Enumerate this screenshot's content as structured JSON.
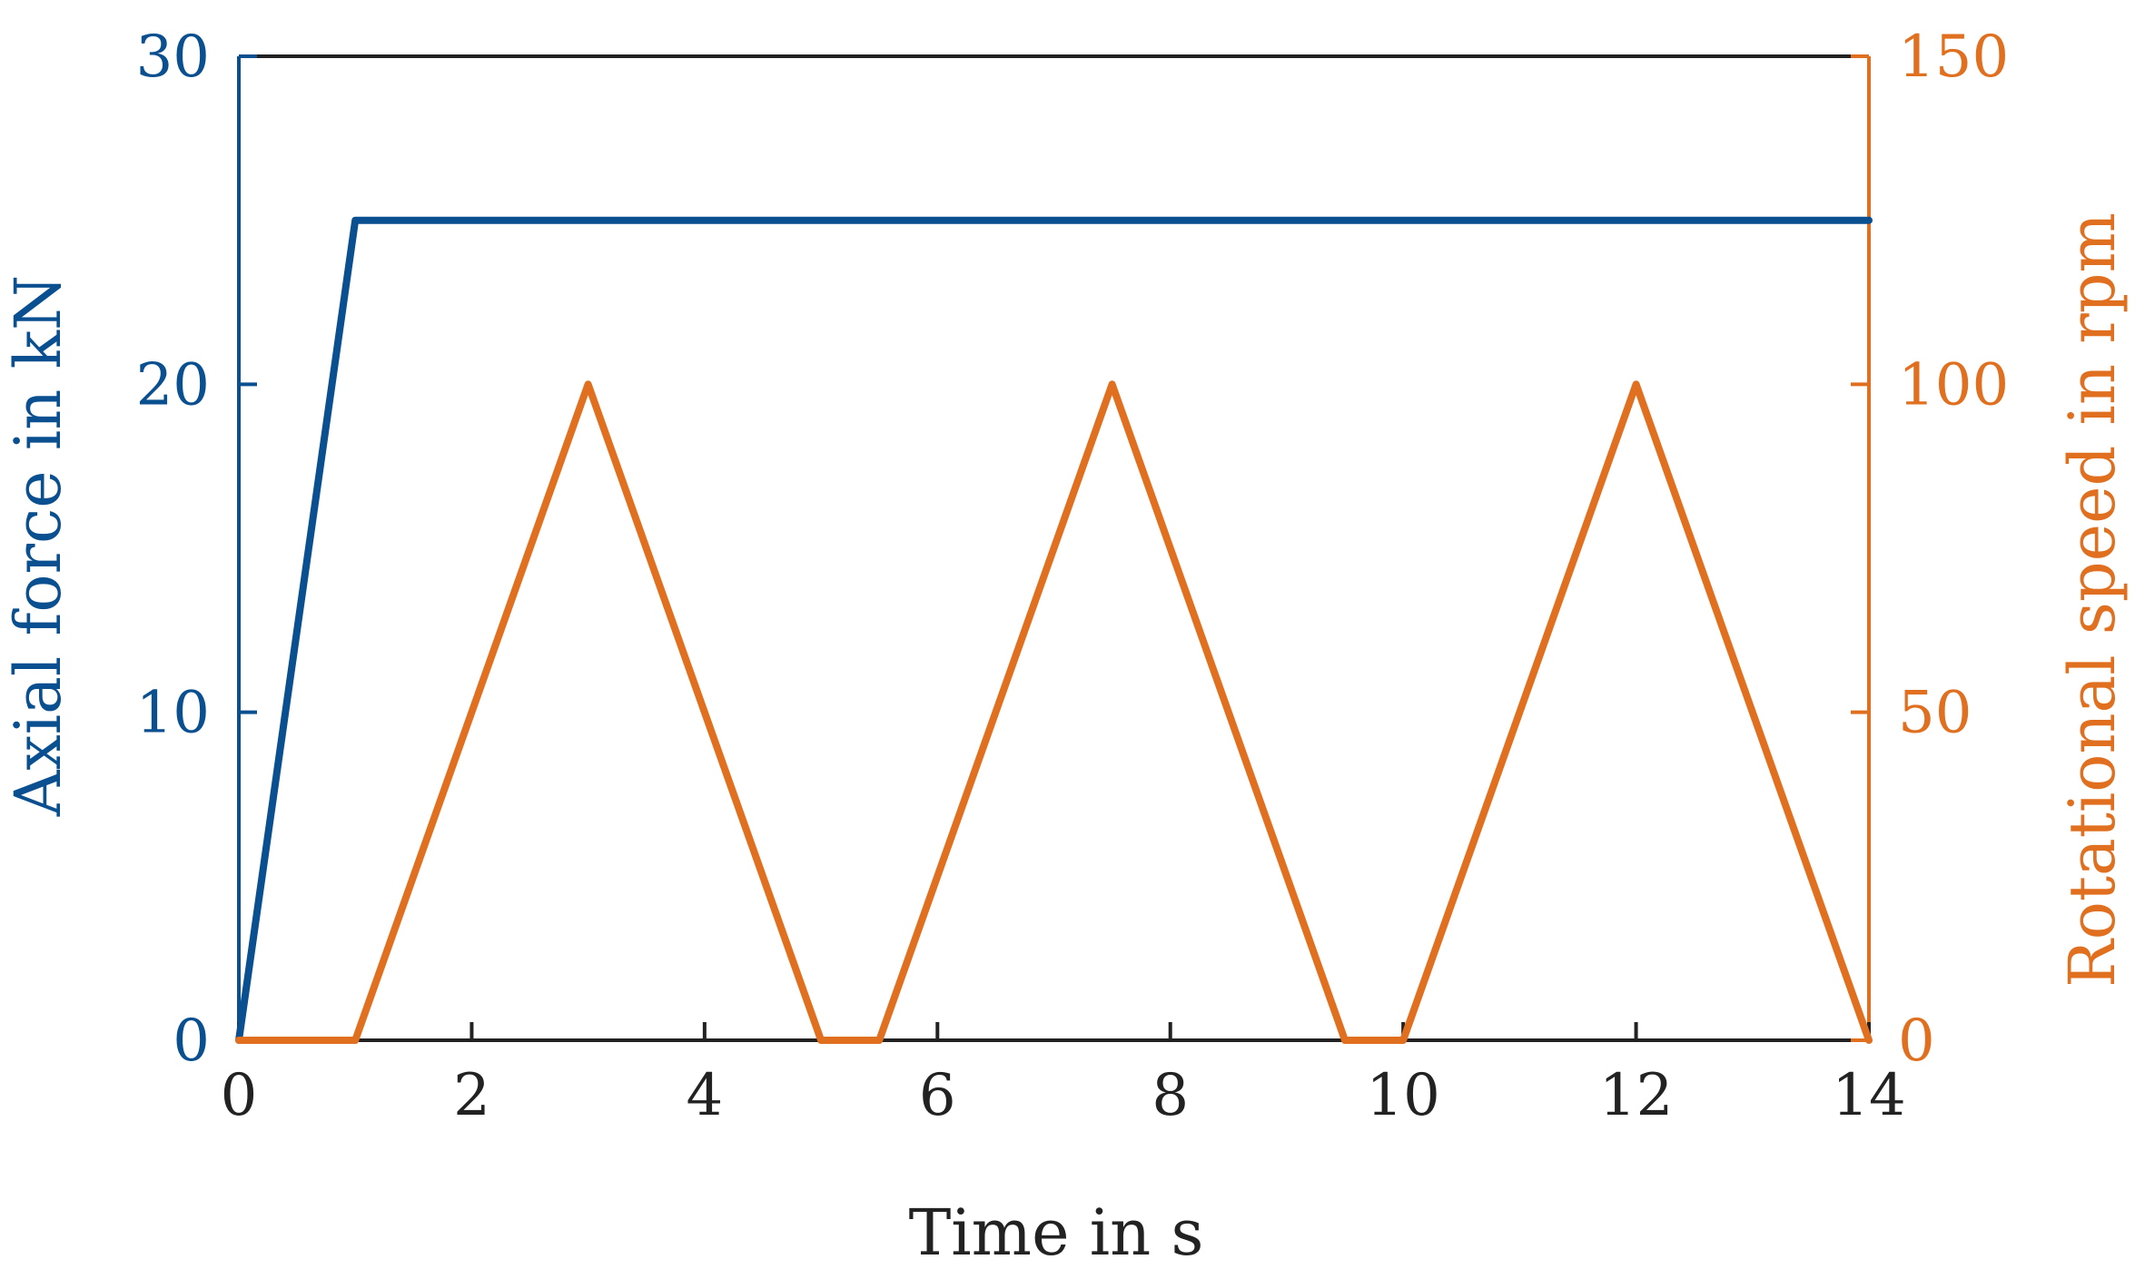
{
  "chart_data": {
    "type": "line",
    "xlabel": "Time in s",
    "ylabel_left": "Axial force in kN",
    "ylabel_right": "Rotational speed in rpm",
    "xlim": [
      0,
      14
    ],
    "ylim_left": [
      0,
      30
    ],
    "ylim_right": [
      0,
      150
    ],
    "xticks": [
      "0",
      "2",
      "4",
      "6",
      "8",
      "10",
      "12",
      "14"
    ],
    "yticks_left": [
      "0",
      "10",
      "20",
      "30"
    ],
    "yticks_right": [
      "0",
      "50",
      "100",
      "150"
    ],
    "grid": false,
    "colors": {
      "force": "#0a4f8f",
      "speed": "#e07020",
      "axes": "#222222"
    },
    "series": [
      {
        "axis": "left",
        "x": [
          0,
          1,
          14
        ],
        "y": [
          0,
          25,
          25
        ]
      },
      {
        "axis": "right",
        "x": [
          0,
          1,
          3,
          5,
          5.5,
          7.5,
          9.5,
          10,
          12,
          14
        ],
        "y": [
          0,
          0,
          100,
          0,
          0,
          100,
          0,
          0,
          100,
          0
        ]
      }
    ]
  }
}
